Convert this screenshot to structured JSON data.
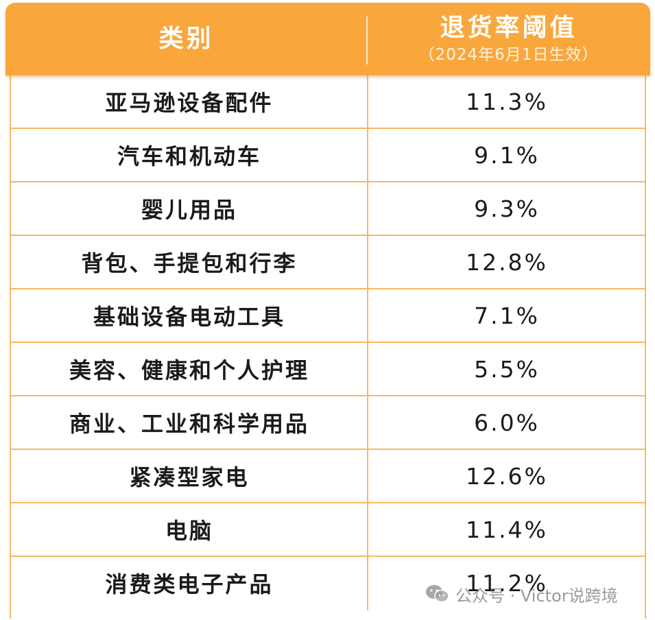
{
  "header": {
    "category_label": "类别",
    "threshold_label": "退货率阈值",
    "threshold_sub": "（2024年6月1日生效）"
  },
  "rows": [
    {
      "category": "亚马逊设备配件",
      "rate": "11.3%"
    },
    {
      "category": "汽车和机动车",
      "rate": "9.1%"
    },
    {
      "category": "婴儿用品",
      "rate": "9.3%"
    },
    {
      "category": "背包、手提包和行李",
      "rate": "12.8%"
    },
    {
      "category": "基础设备电动工具",
      "rate": "7.1%"
    },
    {
      "category": "美容、健康和个人护理",
      "rate": "5.5%"
    },
    {
      "category": "商业、工业和科学用品",
      "rate": "6.0%"
    },
    {
      "category": "紧凑型家电",
      "rate": "12.6%"
    },
    {
      "category": "电脑",
      "rate": "11.4%"
    },
    {
      "category": "消费类电子产品",
      "rate": "11.2%"
    }
  ],
  "watermark": {
    "icon": "wechat-icon",
    "text": "公众号 · Victor说跨境"
  },
  "colors": {
    "header_bg": "#f9a73d",
    "grid_line": "#f7b863"
  }
}
